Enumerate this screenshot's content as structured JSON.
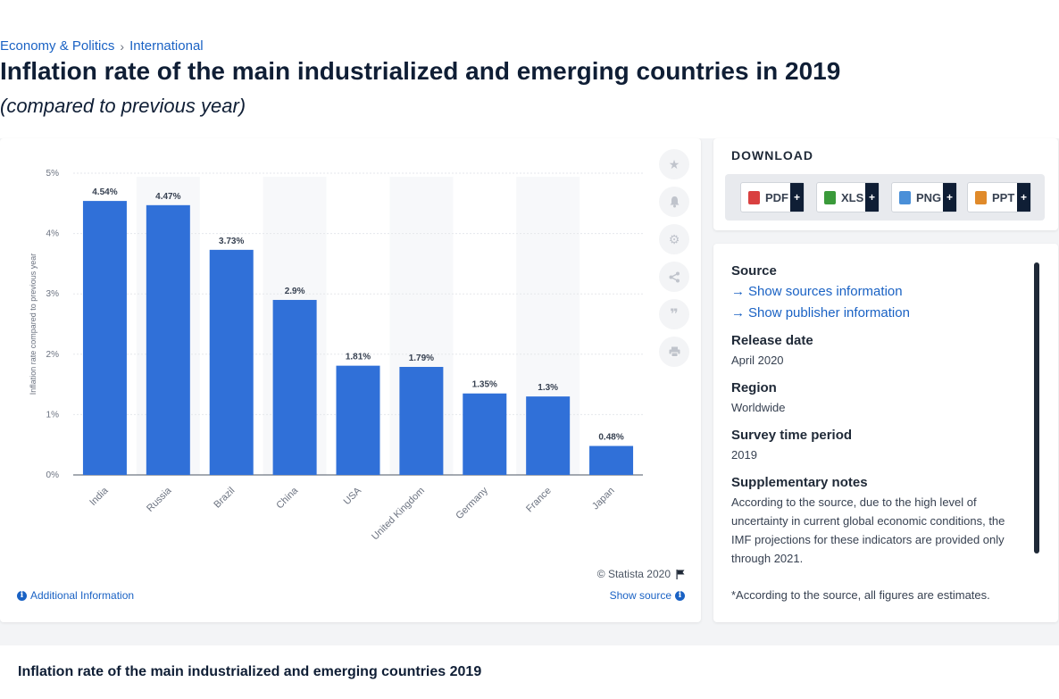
{
  "breadcrumb": [
    "Economy & Politics",
    "International"
  ],
  "title": "Inflation rate of the main industrialized and emerging countries in 2019",
  "subtitle": "(compared to previous year)",
  "chart_data": {
    "type": "bar",
    "categories": [
      "India",
      "Russia",
      "Brazil",
      "China",
      "USA",
      "United Kingdom",
      "Germany",
      "France",
      "Japan"
    ],
    "values": [
      4.54,
      4.47,
      3.73,
      2.9,
      1.81,
      1.79,
      1.35,
      1.3,
      0.48
    ],
    "value_labels": [
      "4.54%",
      "4.47%",
      "3.73%",
      "2.9%",
      "1.81%",
      "1.79%",
      "1.35%",
      "1.3%",
      "0.48%"
    ],
    "ylabel": "Inflation rate compared to previous year",
    "ylim": [
      0,
      5
    ],
    "yticks": [
      "0%",
      "1%",
      "2%",
      "3%",
      "4%",
      "5%"
    ],
    "grid": true,
    "bar_color": "#3070d8"
  },
  "chart_footer": {
    "copyright": "© Statista 2020",
    "additional": "Additional Information",
    "show_source": "Show source"
  },
  "tools": [
    "star-icon",
    "bell-icon",
    "gear-icon",
    "share-icon",
    "quote-icon",
    "print-icon"
  ],
  "download": {
    "title": "DOWNLOAD",
    "buttons": [
      {
        "label": "PDF",
        "color": "#d94040"
      },
      {
        "label": "XLS",
        "color": "#3a9a3a"
      },
      {
        "label": "PNG",
        "color": "#4a8fd8"
      },
      {
        "label": "PPT",
        "color": "#e08a2a"
      }
    ],
    "plus": "+"
  },
  "info": {
    "source_h": "Source",
    "sources_link": "Show sources information",
    "publisher_link": "Show publisher information",
    "release_h": "Release date",
    "release_v": "April 2020",
    "region_h": "Region",
    "region_v": "Worldwide",
    "survey_h": "Survey time period",
    "survey_v": "2019",
    "notes_h": "Supplementary notes",
    "notes_v": "According to the source, due to the high level of uncertainty in current global economic conditions, the IMF projections for these indicators are provided only through 2021.",
    "notes_v2": "*According to the source, all figures are estimates."
  },
  "bottom_title": "Inflation rate of the main industrialized and emerging countries 2019"
}
